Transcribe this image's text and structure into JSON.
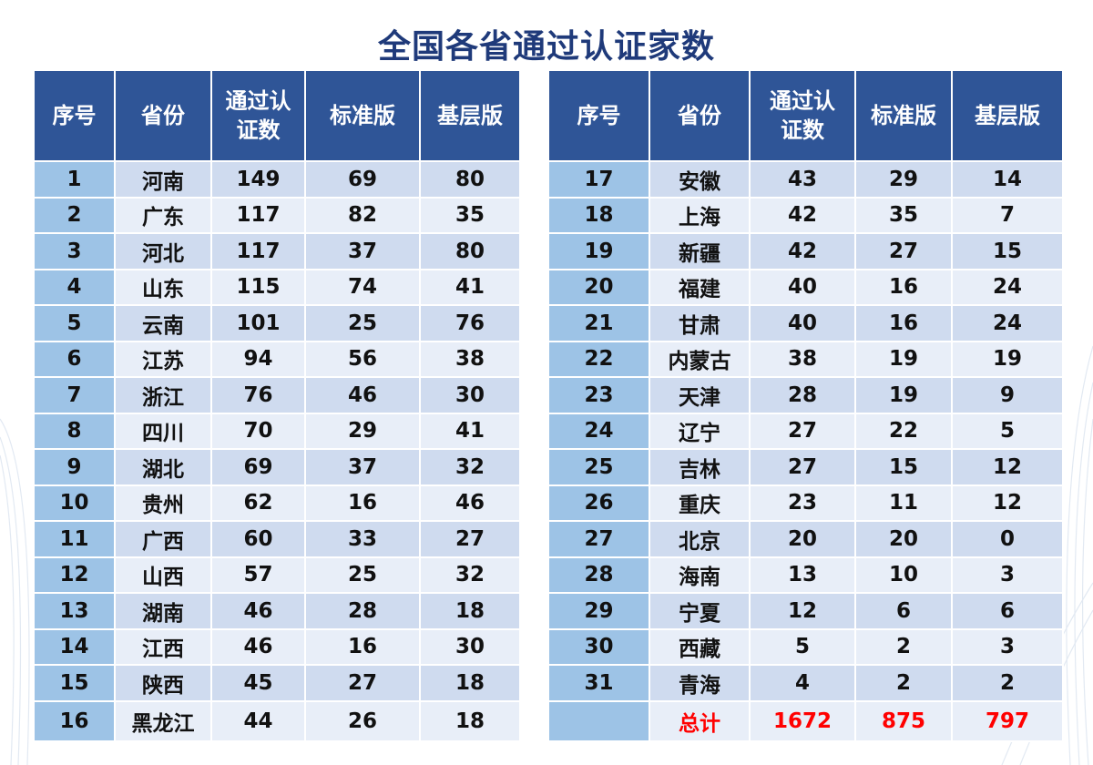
{
  "title": "全国各省通过认证家数",
  "headers": {
    "index": "序号",
    "province": "省份",
    "certified": "通过认证数",
    "standard": "标准版",
    "basic": "基层版"
  },
  "left_rows": [
    {
      "index": "1",
      "province": "河南",
      "certified": "149",
      "standard": "69",
      "basic": "80"
    },
    {
      "index": "2",
      "province": "广东",
      "certified": "117",
      "standard": "82",
      "basic": "35"
    },
    {
      "index": "3",
      "province": "河北",
      "certified": "117",
      "standard": "37",
      "basic": "80"
    },
    {
      "index": "4",
      "province": "山东",
      "certified": "115",
      "standard": "74",
      "basic": "41"
    },
    {
      "index": "5",
      "province": "云南",
      "certified": "101",
      "standard": "25",
      "basic": "76"
    },
    {
      "index": "6",
      "province": "江苏",
      "certified": "94",
      "standard": "56",
      "basic": "38"
    },
    {
      "index": "7",
      "province": "浙江",
      "certified": "76",
      "standard": "46",
      "basic": "30"
    },
    {
      "index": "8",
      "province": "四川",
      "certified": "70",
      "standard": "29",
      "basic": "41"
    },
    {
      "index": "9",
      "province": "湖北",
      "certified": "69",
      "standard": "37",
      "basic": "32"
    },
    {
      "index": "10",
      "province": "贵州",
      "certified": "62",
      "standard": "16",
      "basic": "46"
    },
    {
      "index": "11",
      "province": "广西",
      "certified": "60",
      "standard": "33",
      "basic": "27"
    },
    {
      "index": "12",
      "province": "山西",
      "certified": "57",
      "standard": "25",
      "basic": "32"
    },
    {
      "index": "13",
      "province": "湖南",
      "certified": "46",
      "standard": "28",
      "basic": "18"
    },
    {
      "index": "14",
      "province": "江西",
      "certified": "46",
      "standard": "16",
      "basic": "30"
    },
    {
      "index": "15",
      "province": "陕西",
      "certified": "45",
      "standard": "27",
      "basic": "18"
    },
    {
      "index": "16",
      "province": "黑龙江",
      "certified": "44",
      "standard": "26",
      "basic": "18"
    }
  ],
  "right_rows": [
    {
      "index": "17",
      "province": "安徽",
      "certified": "43",
      "standard": "29",
      "basic": "14"
    },
    {
      "index": "18",
      "province": "上海",
      "certified": "42",
      "standard": "35",
      "basic": "7"
    },
    {
      "index": "19",
      "province": "新疆",
      "certified": "42",
      "standard": "27",
      "basic": "15"
    },
    {
      "index": "20",
      "province": "福建",
      "certified": "40",
      "standard": "16",
      "basic": "24"
    },
    {
      "index": "21",
      "province": "甘肃",
      "certified": "40",
      "standard": "16",
      "basic": "24"
    },
    {
      "index": "22",
      "province": "内蒙古",
      "certified": "38",
      "standard": "19",
      "basic": "19"
    },
    {
      "index": "23",
      "province": "天津",
      "certified": "28",
      "standard": "19",
      "basic": "9"
    },
    {
      "index": "24",
      "province": "辽宁",
      "certified": "27",
      "standard": "22",
      "basic": "5"
    },
    {
      "index": "25",
      "province": "吉林",
      "certified": "27",
      "standard": "15",
      "basic": "12"
    },
    {
      "index": "26",
      "province": "重庆",
      "certified": "23",
      "standard": "11",
      "basic": "12"
    },
    {
      "index": "27",
      "province": "北京",
      "certified": "20",
      "standard": "20",
      "basic": "0"
    },
    {
      "index": "28",
      "province": "海南",
      "certified": "13",
      "standard": "10",
      "basic": "3"
    },
    {
      "index": "29",
      "province": "宁夏",
      "certified": "12",
      "standard": "6",
      "basic": "6"
    },
    {
      "index": "30",
      "province": "西藏",
      "certified": "5",
      "standard": "2",
      "basic": "3"
    },
    {
      "index": "31",
      "province": "青海",
      "certified": "4",
      "standard": "2",
      "basic": "2"
    }
  ],
  "total": {
    "label": "总计",
    "certified": "1672",
    "standard": "875",
    "basic": "797"
  },
  "colors": {
    "title": "#1f3a7a",
    "header_bg": "#2f5597",
    "index_bg": "#9dc3e6",
    "row_odd": "#cfdbef",
    "row_even": "#e8eef8",
    "total_text": "#ff0000"
  }
}
